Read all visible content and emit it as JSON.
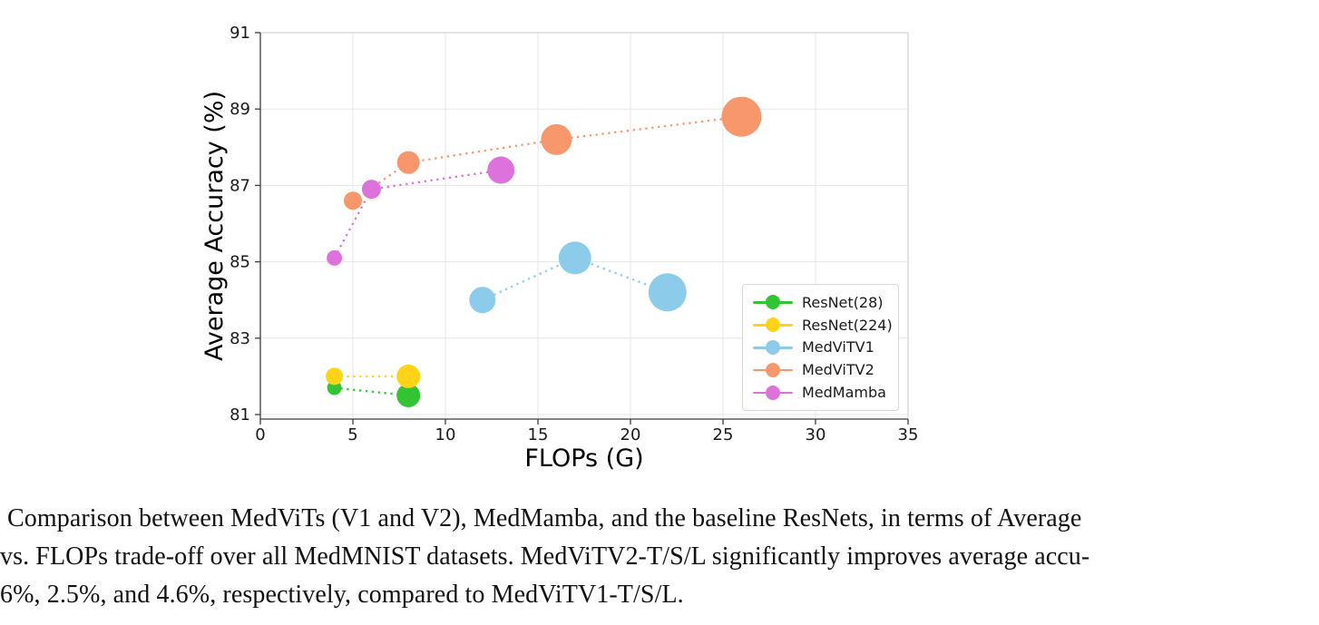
{
  "figure": {
    "caption_lines": [
      "Comparison between MedViTs (V1 and V2), MedMamba, and the baseline ResNets, in terms of Average",
      "vs. FLOPs trade-off over all MedMNIST datasets. MedViTV2-T/S/L significantly improves average accu-",
      "6%, 2.5%, and 4.6%, respectively, compared to MedViTV1-T/S/L."
    ]
  },
  "chart_data": {
    "type": "scatter",
    "title": "",
    "xlabel": "FLOPs (G)",
    "ylabel": "Average Accuracy (%)",
    "xlim": [
      0,
      35
    ],
    "ylim": [
      81,
      91
    ],
    "xticks": [
      0,
      5,
      10,
      15,
      20,
      25,
      30,
      35
    ],
    "yticks": [
      81,
      83,
      85,
      87,
      89,
      91
    ],
    "grid": true,
    "grid_color": "#e6e6e6",
    "spine_dark_color": "#3c3c3c",
    "spine_light_color": "#d2d2d2",
    "tick_label_color": "#1a1a1a",
    "line_style": "dotted",
    "legend_position": "lower right",
    "series": [
      {
        "name": "ResNet(28)",
        "color": "#33c433",
        "points": [
          {
            "x": 4,
            "y": 81.7,
            "r": 8
          },
          {
            "x": 8,
            "y": 81.5,
            "r": 13
          }
        ]
      },
      {
        "name": "ResNet(224)",
        "color": "#ffd317",
        "points": [
          {
            "x": 4,
            "y": 82.0,
            "r": 9.5
          },
          {
            "x": 8,
            "y": 82.0,
            "r": 13
          }
        ]
      },
      {
        "name": "MedViTV1",
        "color": "#8cccea",
        "points": [
          {
            "x": 12,
            "y": 84.0,
            "r": 14.5
          },
          {
            "x": 17,
            "y": 85.1,
            "r": 18
          },
          {
            "x": 22,
            "y": 84.2,
            "r": 21
          }
        ]
      },
      {
        "name": "MedViTV2",
        "color": "#f8966c",
        "points": [
          {
            "x": 5,
            "y": 86.6,
            "r": 10
          },
          {
            "x": 8,
            "y": 87.6,
            "r": 12.5
          },
          {
            "x": 16,
            "y": 88.2,
            "r": 17
          },
          {
            "x": 26,
            "y": 88.8,
            "r": 22
          }
        ]
      },
      {
        "name": "MedMamba",
        "color": "#dd72dc",
        "points": [
          {
            "x": 4,
            "y": 85.1,
            "r": 8.5
          },
          {
            "x": 6,
            "y": 86.9,
            "r": 10.5
          },
          {
            "x": 13,
            "y": 87.4,
            "r": 15
          }
        ]
      }
    ]
  }
}
